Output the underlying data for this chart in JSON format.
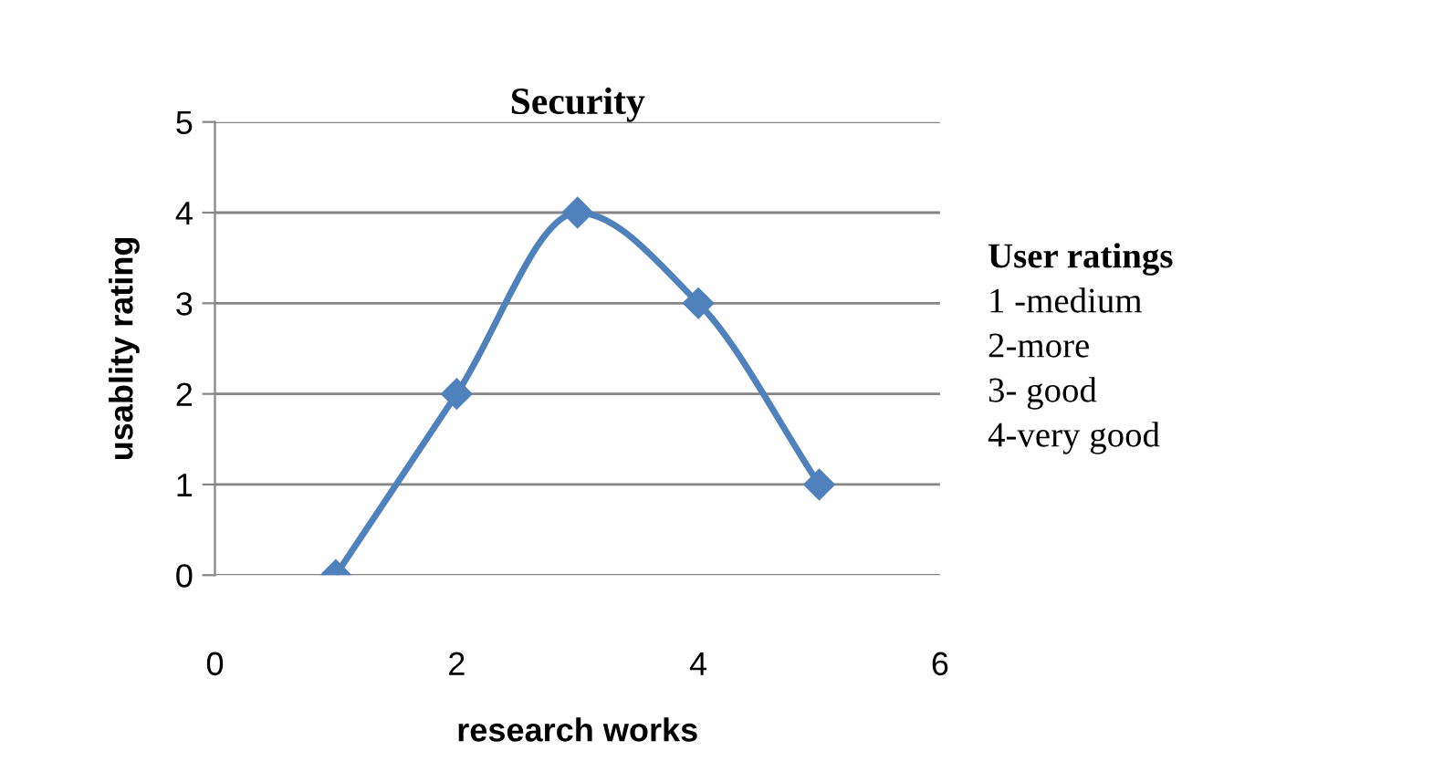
{
  "chart_data": {
    "type": "line",
    "title": "Security",
    "xlabel": "research works",
    "ylabel": "usablity rating",
    "x": [
      1,
      2,
      3,
      4,
      5
    ],
    "series": [
      {
        "color": "#4f81bd",
        "values": [
          0,
          2,
          4,
          3,
          1
        ]
      }
    ],
    "xlim": [
      0,
      6
    ],
    "xticks": [
      0,
      2,
      4,
      6
    ],
    "ylim": [
      0,
      5
    ],
    "yticks": [
      0,
      1,
      2,
      3,
      4,
      5
    ],
    "grid": "y",
    "marker": "diamond",
    "line_style": "solid",
    "annotations": [
      "User ratings",
      "1 -medium",
      "2-more",
      "3- good",
      "4-very good"
    ]
  }
}
